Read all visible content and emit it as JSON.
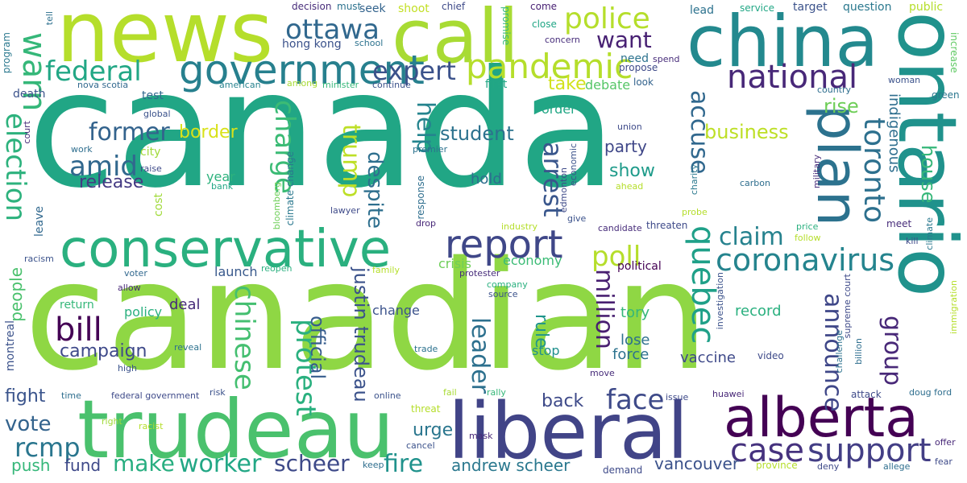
{
  "words": [
    {
      "text": "canada",
      "color": "#21a685"
    },
    {
      "text": "canadian",
      "color": "#8fd744"
    },
    {
      "text": "news",
      "color": "#b5de2b"
    },
    {
      "text": "call",
      "color": "#a8db34"
    },
    {
      "text": "china",
      "color": "#23898e"
    },
    {
      "text": "ontario",
      "color": "#20928c"
    },
    {
      "text": "trudeau",
      "color": "#4ac16d"
    },
    {
      "text": "liberal",
      "color": "#414487"
    },
    {
      "text": "alberta",
      "color": "#440154"
    },
    {
      "text": "conservative",
      "color": "#2ab07f"
    },
    {
      "text": "plan",
      "color": "#2c728e"
    },
    {
      "text": "government",
      "color": "#27808e"
    },
    {
      "text": "pandemic",
      "color": "#b5de2b"
    },
    {
      "text": "police",
      "color": "#b5de2b"
    },
    {
      "text": "report",
      "color": "#3f4788"
    },
    {
      "text": "federal",
      "color": "#22a785"
    },
    {
      "text": "ottawa",
      "color": "#31688e"
    },
    {
      "text": "national",
      "color": "#482878"
    },
    {
      "text": "warn",
      "color": "#35b779"
    },
    {
      "text": "expert",
      "color": "#3b528b"
    },
    {
      "text": "want",
      "color": "#482173"
    },
    {
      "text": "coronavirus",
      "color": "#25848e"
    },
    {
      "text": "toronto",
      "color": "#2d708e"
    },
    {
      "text": "quebec",
      "color": "#1fa088"
    },
    {
      "text": "election",
      "color": "#2db27d"
    },
    {
      "text": "bill",
      "color": "#440154"
    },
    {
      "text": "amid",
      "color": "#31688e"
    },
    {
      "text": "former",
      "color": "#33638d"
    },
    {
      "text": "trump",
      "color": "#bddf26"
    },
    {
      "text": "charge",
      "color": "#3bbb75"
    },
    {
      "text": "protest",
      "color": "#2ab07f"
    },
    {
      "text": "chinese",
      "color": "#44bf70"
    },
    {
      "text": "support",
      "color": "#433e85"
    },
    {
      "text": "case",
      "color": "#46327e"
    },
    {
      "text": "face",
      "color": "#3e4a89"
    },
    {
      "text": "worker",
      "color": "#22a785"
    },
    {
      "text": "make",
      "color": "#28ae80"
    },
    {
      "text": "scheer",
      "color": "#3e4a89"
    },
    {
      "text": "fire",
      "color": "#20928c"
    },
    {
      "text": "rcmp",
      "color": "#2a768e"
    },
    {
      "text": "poll",
      "color": "#b5de2b"
    },
    {
      "text": "claim",
      "color": "#26828e"
    },
    {
      "text": "million",
      "color": "#481f70"
    },
    {
      "text": "leader",
      "color": "#2d708e"
    },
    {
      "text": "announce",
      "color": "#3f4788"
    },
    {
      "text": "group",
      "color": "#482878"
    },
    {
      "text": "arrest",
      "color": "#39568c"
    },
    {
      "text": "accuse",
      "color": "#31688e"
    },
    {
      "text": "help",
      "color": "#25848e"
    },
    {
      "text": "vote",
      "color": "#33638d"
    },
    {
      "text": "business",
      "color": "#bddf26"
    },
    {
      "text": "student",
      "color": "#2c728e"
    },
    {
      "text": "despite",
      "color": "#2e6f8e"
    },
    {
      "text": "justin trudeau",
      "color": "#3b528b"
    },
    {
      "text": "official",
      "color": "#365c8d"
    },
    {
      "text": "campaign",
      "color": "#3e4989"
    },
    {
      "text": "release",
      "color": "#443a83"
    },
    {
      "text": "border",
      "color": "#d8e219"
    },
    {
      "text": "house",
      "color": "#35b779"
    },
    {
      "text": "rise",
      "color": "#6ece58"
    },
    {
      "text": "indigenous",
      "color": "#2e6e8e"
    },
    {
      "text": "take",
      "color": "#d2e21b"
    },
    {
      "text": "show",
      "color": "#1e9b8a"
    },
    {
      "text": "party",
      "color": "#3f4788"
    },
    {
      "text": "rule",
      "color": "#1f958b"
    },
    {
      "text": "fight",
      "color": "#3a548c"
    },
    {
      "text": "back",
      "color": "#3e4a89"
    },
    {
      "text": "urge",
      "color": "#2a768e"
    },
    {
      "text": "fund",
      "color": "#3e4989"
    },
    {
      "text": "push",
      "color": "#35b779"
    },
    {
      "text": "andrew scheer",
      "color": "#2a788e"
    },
    {
      "text": "vancouver",
      "color": "#3b528b"
    },
    {
      "text": "people",
      "color": "#4ac16d"
    },
    {
      "text": "montreal",
      "color": "#3b528b"
    },
    {
      "text": "tory",
      "color": "#35b779"
    },
    {
      "text": "lose",
      "color": "#2d708e"
    },
    {
      "text": "force",
      "color": "#2c728e"
    },
    {
      "text": "vaccine",
      "color": "#3e4989"
    },
    {
      "text": "record",
      "color": "#2ab07f"
    },
    {
      "text": "deal",
      "color": "#472c7a"
    },
    {
      "text": "hold",
      "color": "#2e6e8e"
    },
    {
      "text": "year",
      "color": "#2db27d"
    },
    {
      "text": "order",
      "color": "#22a785"
    },
    {
      "text": "debate",
      "color": "#56c667"
    },
    {
      "text": "launch",
      "color": "#38598c"
    },
    {
      "text": "stop",
      "color": "#21908d"
    },
    {
      "text": "economy",
      "color": "#3bbb75"
    },
    {
      "text": "crisis",
      "color": "#6ece58"
    },
    {
      "text": "change",
      "color": "#3b528b"
    },
    {
      "text": "policy",
      "color": "#2ab07f"
    },
    {
      "text": "return",
      "color": "#35b779"
    },
    {
      "text": "test",
      "color": "#31688e"
    },
    {
      "text": "death",
      "color": "#3b528b"
    },
    {
      "text": "city",
      "color": "#a0da39"
    },
    {
      "text": "need",
      "color": "#2c728e"
    },
    {
      "text": "hong kong",
      "color": "#3b528b"
    },
    {
      "text": "nova scotia",
      "color": "#31688e"
    },
    {
      "text": "american",
      "color": "#26828e"
    },
    {
      "text": "among",
      "color": "#a8db34"
    },
    {
      "text": "minister",
      "color": "#35b779"
    },
    {
      "text": "continue",
      "color": "#3b528b"
    },
    {
      "text": "first",
      "color": "#22a785"
    },
    {
      "text": "look",
      "color": "#33638d"
    },
    {
      "text": "propose",
      "color": "#3e4a89"
    },
    {
      "text": "concern",
      "color": "#472d7b"
    },
    {
      "text": "close",
      "color": "#21a685"
    },
    {
      "text": "come",
      "color": "#482173"
    },
    {
      "text": "promise",
      "color": "#35b779"
    },
    {
      "text": "decision",
      "color": "#472c7a"
    },
    {
      "text": "must",
      "color": "#2c728e"
    },
    {
      "text": "seek",
      "color": "#33638d"
    },
    {
      "text": "shoot",
      "color": "#c2df23"
    },
    {
      "text": "chief",
      "color": "#3e4a89"
    },
    {
      "text": "lead",
      "color": "#2c728e"
    },
    {
      "text": "service",
      "color": "#22a785"
    },
    {
      "text": "target",
      "color": "#3b528b"
    },
    {
      "text": "question",
      "color": "#2a788e"
    },
    {
      "text": "public",
      "color": "#b5de2b"
    },
    {
      "text": "increase",
      "color": "#5ec962"
    },
    {
      "text": "woman",
      "color": "#3b528b"
    },
    {
      "text": "green",
      "color": "#2a768e"
    },
    {
      "text": "country",
      "color": "#2e6e8e"
    },
    {
      "text": "spend",
      "color": "#472c7a"
    },
    {
      "text": "program",
      "color": "#2a788e"
    },
    {
      "text": "tell",
      "color": "#2d708e"
    },
    {
      "text": "school",
      "color": "#2c728e"
    },
    {
      "text": "global",
      "color": "#3b528b"
    },
    {
      "text": "court",
      "color": "#472c7a"
    },
    {
      "text": "work",
      "color": "#2e6e8e"
    },
    {
      "text": "raise",
      "color": "#3e4a89"
    },
    {
      "text": "bank",
      "color": "#22a785"
    },
    {
      "text": "cost",
      "color": "#a0da39"
    },
    {
      "text": "leave",
      "color": "#31688e"
    },
    {
      "text": "racism",
      "color": "#3b528b"
    },
    {
      "text": "voter",
      "color": "#31688e"
    },
    {
      "text": "allow",
      "color": "#482878"
    },
    {
      "text": "high",
      "color": "#3b528b"
    },
    {
      "text": "time",
      "color": "#2e6e8e"
    },
    {
      "text": "federal government",
      "color": "#3e4a89"
    },
    {
      "text": "reveal",
      "color": "#2c728e"
    },
    {
      "text": "risk",
      "color": "#3b528b"
    },
    {
      "text": "right",
      "color": "#a0da39"
    },
    {
      "text": "racist",
      "color": "#b5de2b"
    },
    {
      "text": "keep",
      "color": "#2e6e8e"
    },
    {
      "text": "cancel",
      "color": "#3b528b"
    },
    {
      "text": "demand",
      "color": "#3e4a89"
    },
    {
      "text": "mask",
      "color": "#482878"
    },
    {
      "text": "threat",
      "color": "#b5de2b"
    },
    {
      "text": "online",
      "color": "#3b528b"
    },
    {
      "text": "fail",
      "color": "#a8db34"
    },
    {
      "text": "rally",
      "color": "#35b779"
    },
    {
      "text": "trade",
      "color": "#2c728e"
    },
    {
      "text": "reopen",
      "color": "#2ab07f"
    },
    {
      "text": "family",
      "color": "#b5de2b"
    },
    {
      "text": "climate change",
      "color": "#2a788e"
    },
    {
      "text": "bloomberg",
      "color": "#6ece58"
    },
    {
      "text": "lawyer",
      "color": "#3e4a89"
    },
    {
      "text": "response",
      "color": "#2e6e8e"
    },
    {
      "text": "drop",
      "color": "#482878"
    },
    {
      "text": "premier",
      "color": "#2c728e"
    },
    {
      "text": "protester",
      "color": "#472c7a"
    },
    {
      "text": "company",
      "color": "#2ab07f"
    },
    {
      "text": "source",
      "color": "#3b528b"
    },
    {
      "text": "political",
      "color": "#440154"
    },
    {
      "text": "industry",
      "color": "#b5de2b"
    },
    {
      "text": "give",
      "color": "#3b528b"
    },
    {
      "text": "candidate",
      "color": "#472c7a"
    },
    {
      "text": "threaten",
      "color": "#3e4a89"
    },
    {
      "text": "probe",
      "color": "#b5de2b"
    },
    {
      "text": "union",
      "color": "#3e4a89"
    },
    {
      "text": "economic",
      "color": "#3b528b"
    },
    {
      "text": "edmonton",
      "color": "#3e4a89"
    },
    {
      "text": "ahead",
      "color": "#b5de2b"
    },
    {
      "text": "charity",
      "color": "#2a788e"
    },
    {
      "text": "carbon",
      "color": "#2e6e8e"
    },
    {
      "text": "military",
      "color": "#472c7a"
    },
    {
      "text": "price",
      "color": "#2ab07f"
    },
    {
      "text": "follow",
      "color": "#b5de2b"
    },
    {
      "text": "meet",
      "color": "#472c7a"
    },
    {
      "text": "kill",
      "color": "#3e4a89"
    },
    {
      "text": "climate",
      "color": "#2a788e"
    },
    {
      "text": "investigation",
      "color": "#3b528b"
    },
    {
      "text": "challenge",
      "color": "#2c728e"
    },
    {
      "text": "supreme court",
      "color": "#3e4a89"
    },
    {
      "text": "video",
      "color": "#3e4a89"
    },
    {
      "text": "billion",
      "color": "#2e6e8e"
    },
    {
      "text": "move",
      "color": "#472c7a"
    },
    {
      "text": "issue",
      "color": "#3e4a89"
    },
    {
      "text": "huawei",
      "color": "#482878"
    },
    {
      "text": "attack",
      "color": "#3e4a89"
    },
    {
      "text": "doug ford",
      "color": "#2e6e8e"
    },
    {
      "text": "offer",
      "color": "#482878"
    },
    {
      "text": "fear",
      "color": "#3e4a89"
    },
    {
      "text": "allege",
      "color": "#2e6e8e"
    },
    {
      "text": "deny",
      "color": "#3e4a89"
    },
    {
      "text": "province",
      "color": "#b5de2b"
    },
    {
      "text": "immigration",
      "color": "#b5de2b"
    }
  ]
}
